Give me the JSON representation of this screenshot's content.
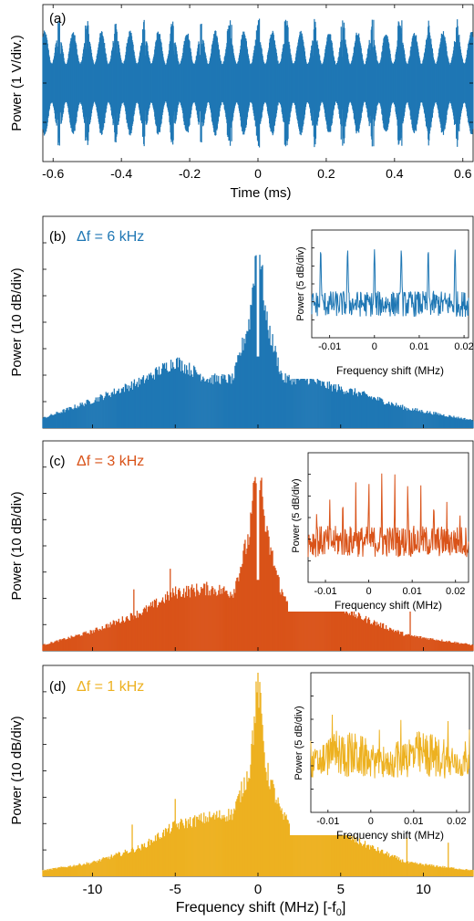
{
  "colors": {
    "blue": "#1f77b4",
    "orange": "#d95319",
    "yellow": "#edb120"
  },
  "chart_data": [
    {
      "id": "a",
      "type": "line",
      "panel_label": "(a)",
      "xlabel": "Time (ms)",
      "ylabel": "Power (1 V/div.)",
      "xlim": [
        -0.63,
        0.63
      ],
      "xticks": [
        "-0.6",
        "-0.4",
        "-0.2",
        "0",
        "0.2",
        "0.4",
        "0.6"
      ],
      "xtick_values": [
        -0.6,
        -0.4,
        -0.2,
        0,
        0.2,
        0.4,
        0.6
      ],
      "burst_centers_ms": [
        -0.583,
        -0.5,
        -0.417,
        -0.333,
        -0.25,
        -0.167,
        -0.083,
        0.0,
        0.083,
        0.167,
        0.25,
        0.333,
        0.417,
        0.5,
        0.583
      ],
      "burst_period_ms": 0.0833,
      "color": "#1f77b4",
      "grid": false
    },
    {
      "id": "b",
      "type": "area",
      "panel_label": "(b)",
      "annotation": "Δf = 6 kHz",
      "ylabel": "Power (10 dB/div)",
      "xlim": [
        -13,
        13
      ],
      "spectrum_envelope": {
        "x": [
          -13,
          -10,
          -7,
          -5,
          -3,
          -1.5,
          -0.5,
          0,
          0.5,
          1.5,
          3,
          4,
          6,
          9,
          13
        ],
        "y": [
          0.05,
          0.14,
          0.24,
          0.34,
          0.25,
          0.25,
          0.55,
          1.0,
          0.55,
          0.25,
          0.25,
          0.22,
          0.18,
          0.1,
          0.04
        ]
      },
      "color": "#1f77b4",
      "inset": {
        "xlabel": "Frequency shift (MHz)",
        "ylabel": "Power (5 dB/div)",
        "xlim": [
          -0.014,
          0.021
        ],
        "xticks": [
          "-0.01",
          "0",
          "0.01",
          "0.02"
        ],
        "xtick_values": [
          -0.01,
          0,
          0.01,
          0.02
        ],
        "peaks_mhz": [
          -0.012,
          -0.006,
          0.0,
          0.006,
          0.012,
          0.018
        ],
        "peak_spacing_khz": 6
      }
    },
    {
      "id": "c",
      "type": "area",
      "panel_label": "(c)",
      "annotation": "Δf = 3 kHz",
      "ylabel": "Power (10 dB/div)",
      "xlim": [
        -13,
        13
      ],
      "spectrum_envelope": {
        "x": [
          -13,
          -10,
          -7,
          -5,
          -3,
          -1.5,
          -0.5,
          0,
          0.5,
          1.5,
          3,
          4,
          6,
          9,
          13
        ],
        "y": [
          0.03,
          0.1,
          0.2,
          0.3,
          0.32,
          0.3,
          0.6,
          1.0,
          0.6,
          0.28,
          0.24,
          0.27,
          0.18,
          0.08,
          0.03
        ]
      },
      "spurs_mhz": [
        -7.5,
        -5.3,
        4.7,
        9.2
      ],
      "color": "#d95319",
      "inset": {
        "xlabel": "Frequency shift (MHz)",
        "ylabel": "Power (5 dB/div)",
        "xlim": [
          -0.014,
          0.023
        ],
        "xticks": [
          "-0.01",
          "0",
          "0.01",
          "0.02"
        ],
        "xtick_values": [
          -0.01,
          0,
          0.01,
          0.02
        ],
        "peak_spacing_khz": 3
      }
    },
    {
      "id": "d",
      "type": "area",
      "panel_label": "(d)",
      "annotation": "Δf = 1 kHz",
      "ylabel": "Power (10 dB/div)",
      "xlabel": "Frequency shift (MHz) [-f0]",
      "xlim": [
        -13,
        13
      ],
      "xticks": [
        "-10",
        "-5",
        "0",
        "5",
        "10"
      ],
      "xtick_values": [
        -10,
        -5,
        0,
        5,
        10
      ],
      "spectrum_envelope": {
        "x": [
          -13,
          -10,
          -7,
          -5,
          -3,
          -1.5,
          -0.5,
          0,
          0.5,
          1.5,
          3,
          4,
          6,
          9,
          13
        ],
        "y": [
          0.03,
          0.07,
          0.15,
          0.26,
          0.3,
          0.32,
          0.55,
          1.0,
          0.55,
          0.3,
          0.24,
          0.28,
          0.18,
          0.07,
          0.03
        ]
      },
      "spurs_mhz": [
        -7.6,
        -5.0,
        9.0,
        11.5
      ],
      "color": "#edb120",
      "inset": {
        "xlabel": "Frequency shift (MHz)",
        "ylabel": "Power (5 dB/div)",
        "xlim": [
          -0.014,
          0.023
        ],
        "xticks": [
          "-0.01",
          "0",
          "0.01",
          "0.02"
        ],
        "xtick_values": [
          -0.01,
          0,
          0.01,
          0.02
        ],
        "peak_spacing_khz": 1
      }
    }
  ]
}
